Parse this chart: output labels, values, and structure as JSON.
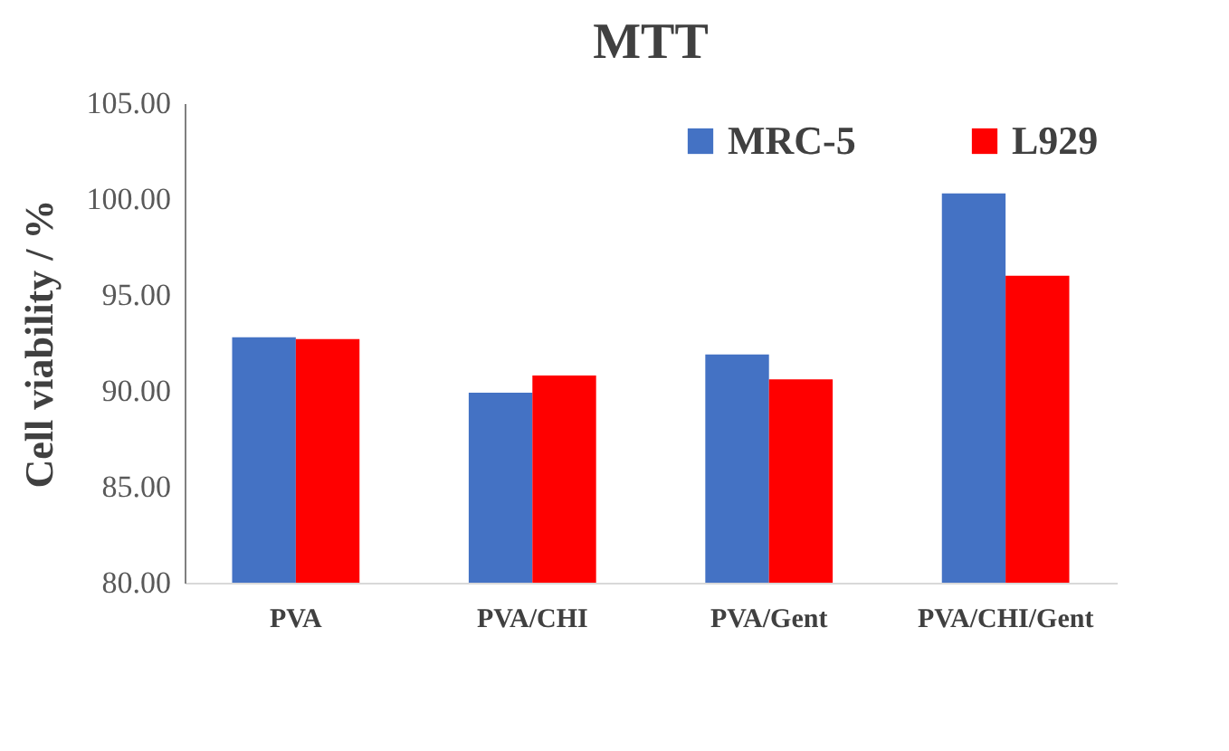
{
  "chart_data": {
    "type": "bar",
    "title": "MTT",
    "ylabel": "Cell viability / %",
    "categories": [
      "PVA",
      "PVA/CHI",
      "PVA/Gent",
      "PVA/CHI/Gent"
    ],
    "series": [
      {
        "name": "MRC-5",
        "color": "#4472c4",
        "values": [
          92.8,
          89.9,
          91.9,
          100.3
        ]
      },
      {
        "name": "L929",
        "color": "#ff0000",
        "values": [
          92.7,
          90.8,
          90.6,
          96.0
        ]
      }
    ],
    "ylim": [
      80,
      105
    ],
    "yticks": [
      {
        "value": 80,
        "label": "80.00"
      },
      {
        "value": 85,
        "label": "85.00"
      },
      {
        "value": 90,
        "label": "90.00"
      },
      {
        "value": 95,
        "label": "95.00"
      },
      {
        "value": 100,
        "label": "100.00"
      },
      {
        "value": 105,
        "label": "105.00"
      }
    ],
    "grid": false,
    "legend": "top right"
  }
}
